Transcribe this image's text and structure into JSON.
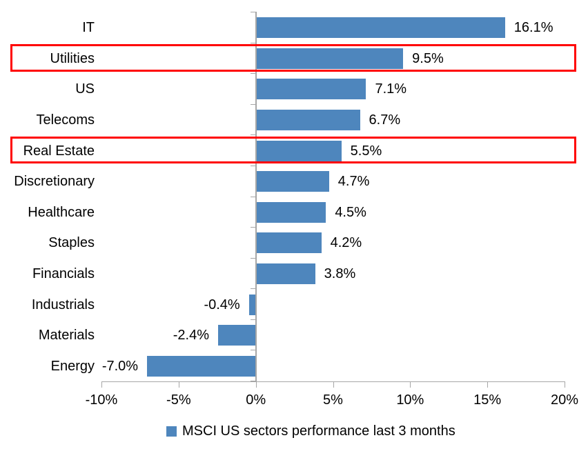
{
  "chart_data": {
    "type": "bar",
    "orientation": "horizontal",
    "title": "",
    "categories": [
      "IT",
      "Utilities",
      "US",
      "Telecoms",
      "Real Estate",
      "Discretionary",
      "Healthcare",
      "Staples",
      "Financials",
      "Industrials",
      "Materials",
      "Energy"
    ],
    "values": [
      16.1,
      9.5,
      7.1,
      6.7,
      5.5,
      4.7,
      4.5,
      4.2,
      3.8,
      -0.4,
      -2.4,
      -7.0
    ],
    "value_labels": [
      "16.1%",
      "9.5%",
      "7.1%",
      "6.7%",
      "5.5%",
      "4.7%",
      "4.5%",
      "4.2%",
      "3.8%",
      "-0.4%",
      "-2.4%",
      "-7.0%"
    ],
    "highlighted_categories": [
      "Utilities",
      "Real Estate"
    ],
    "x_axis": {
      "min": -10,
      "max": 20,
      "step": 5,
      "tick_labels": [
        "-10%",
        "-5%",
        "0%",
        "5%",
        "10%",
        "15%",
        "20%"
      ]
    },
    "legend": {
      "label": "MSCI US sectors performance last 3 months",
      "position": "bottom"
    },
    "grid": "off",
    "colors": {
      "bar": "#4E86BD",
      "highlight_border": "#FF0000",
      "axis": "#A6A6A6",
      "text": "#000000"
    }
  }
}
